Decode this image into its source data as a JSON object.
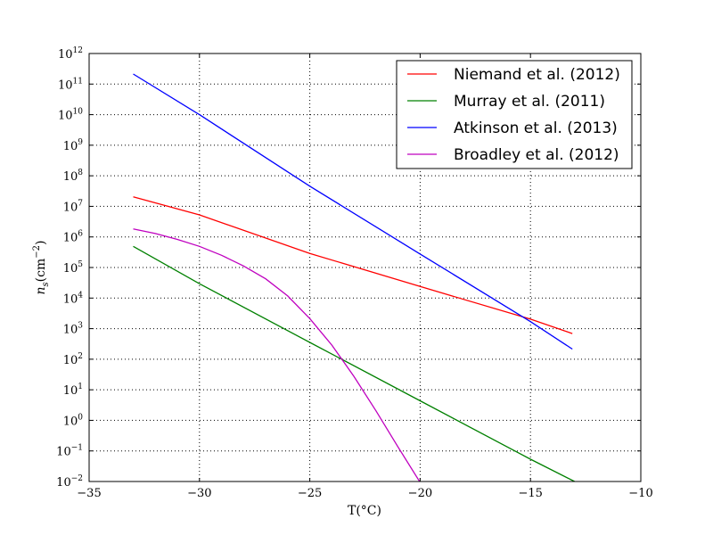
{
  "chart_data": {
    "type": "line",
    "xlabel": "T(°C)",
    "ylabel": "n_s(cm^-2)",
    "xlim": [
      -35,
      -10
    ],
    "ylim_log10": [
      -2,
      12
    ],
    "yscale": "log",
    "grid": true,
    "legend_position": "top-right",
    "x_ticks": [
      -35,
      -30,
      -25,
      -20,
      -15,
      -10
    ],
    "x_tick_labels": [
      "−35",
      "−30",
      "−25",
      "−20",
      "−15",
      "−10"
    ],
    "y_tick_exponents": [
      -2,
      -1,
      0,
      1,
      2,
      3,
      4,
      5,
      6,
      7,
      8,
      9,
      10,
      11,
      12
    ],
    "y_tick_labels": [
      {
        "base": "10",
        "exp": "−2"
      },
      {
        "base": "10",
        "exp": "−1"
      },
      {
        "base": "10",
        "exp": "0"
      },
      {
        "base": "10",
        "exp": "1"
      },
      {
        "base": "10",
        "exp": "2"
      },
      {
        "base": "10",
        "exp": "3"
      },
      {
        "base": "10",
        "exp": "4"
      },
      {
        "base": "10",
        "exp": "5"
      },
      {
        "base": "10",
        "exp": "6"
      },
      {
        "base": "10",
        "exp": "7"
      },
      {
        "base": "10",
        "exp": "8"
      },
      {
        "base": "10",
        "exp": "9"
      },
      {
        "base": "10",
        "exp": "10"
      },
      {
        "base": "10",
        "exp": "11"
      },
      {
        "base": "10",
        "exp": "12"
      }
    ],
    "series": [
      {
        "name": "Niemand et al. (2012)",
        "color": "#ff0000",
        "x": [
          -33,
          -30,
          -25,
          -20,
          -15,
          -13.1
        ],
        "y_log10": [
          7.31,
          6.72,
          5.46,
          4.38,
          3.31,
          2.84
        ]
      },
      {
        "name": "Murray et al. (2011)",
        "color": "#008000",
        "x": [
          -33,
          -30,
          -25,
          -20,
          -15,
          -13.0
        ],
        "y_log10": [
          5.69,
          4.47,
          2.55,
          0.64,
          -1.27,
          -2.0
        ]
      },
      {
        "name": "Atkinson et al. (2013)",
        "color": "#0000ff",
        "x": [
          -33,
          -30,
          -25,
          -20,
          -15,
          -13.1
        ],
        "y_log10": [
          11.33,
          10.0,
          7.66,
          5.44,
          3.23,
          2.33
        ]
      },
      {
        "name": "Broadley et al. (2012)",
        "color": "#bf00bf",
        "x": [
          -33,
          -32,
          -31,
          -30,
          -29,
          -28,
          -27,
          -26,
          -25,
          -24,
          -23,
          -22,
          -21,
          -20
        ],
        "y_log10": [
          6.26,
          6.11,
          5.92,
          5.69,
          5.4,
          5.05,
          4.63,
          4.07,
          3.33,
          2.46,
          1.44,
          0.31,
          -0.87,
          -2.03
        ]
      }
    ]
  }
}
